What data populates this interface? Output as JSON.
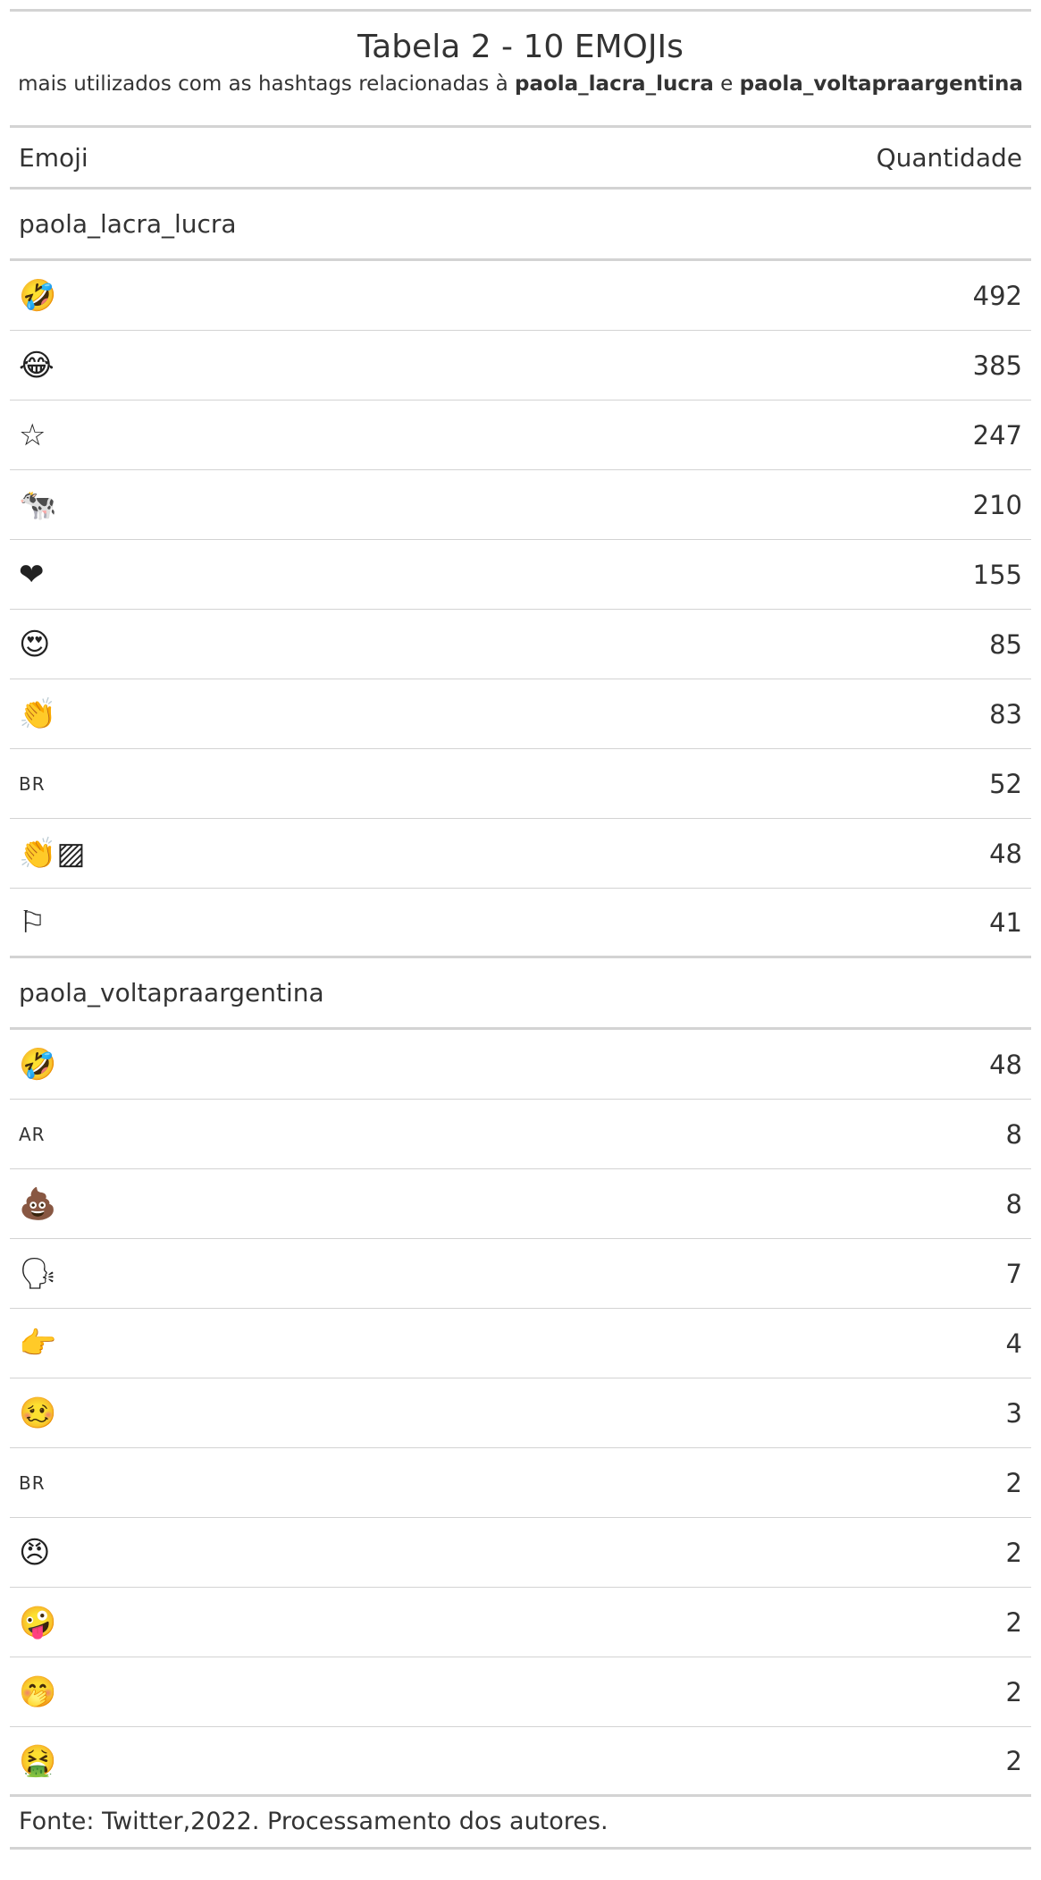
{
  "table": {
    "title": "Tabela 2 - 10 EMOJIs",
    "subtitle_prefix": "mais utilizados com as hashtags relacionadas à ",
    "subtitle_tag1": "paola_lacra_lucra",
    "subtitle_connector": " e ",
    "subtitle_tag2": "paola_voltapraargentina",
    "col_emoji": "Emoji",
    "col_qty": "Quantidade",
    "footnote": "Fonte: Twitter,2022. Processamento dos autores."
  },
  "groups": [
    {
      "name": "paola_lacra_lucra",
      "rows": [
        {
          "emoji": "🤣",
          "icon": "rofl-face-icon",
          "qty": "492"
        },
        {
          "emoji": "😂",
          "icon": "tears-of-joy-icon",
          "qty": "385"
        },
        {
          "emoji": "☆",
          "icon": "star-icon",
          "qty": "247"
        },
        {
          "emoji": "🐄",
          "icon": "cow-icon",
          "qty": "210"
        },
        {
          "emoji": "❤",
          "icon": "heart-icon",
          "qty": "155"
        },
        {
          "emoji": "😍",
          "icon": "heart-eyes-icon",
          "qty": "85"
        },
        {
          "emoji": "👏",
          "icon": "clapping-hands-icon",
          "qty": "83"
        },
        {
          "emoji": "BR",
          "icon": "flag-br-icon",
          "qty": "52"
        },
        {
          "emoji": "👏▨",
          "icon": "clapping-hands-skin-tone-icon",
          "qty": "48"
        },
        {
          "emoji": "⚐",
          "icon": "white-flag-icon",
          "qty": "41"
        }
      ]
    },
    {
      "name": "paola_voltapraargentina",
      "rows": [
        {
          "emoji": "🤣",
          "icon": "rofl-face-icon",
          "qty": "48"
        },
        {
          "emoji": "AR",
          "icon": "flag-ar-icon",
          "qty": "8"
        },
        {
          "emoji": "💩",
          "icon": "pile-of-poo-icon",
          "qty": "8"
        },
        {
          "emoji": "🗣",
          "icon": "speaking-head-icon",
          "qty": "7"
        },
        {
          "emoji": "👉",
          "icon": "pointing-right-icon",
          "qty": "4"
        },
        {
          "emoji": "🥴",
          "icon": "woozy-face-icon",
          "qty": "3"
        },
        {
          "emoji": "BR",
          "icon": "flag-br-icon",
          "qty": "2"
        },
        {
          "emoji": "😠",
          "icon": "angry-face-icon",
          "qty": "2"
        },
        {
          "emoji": "🤪",
          "icon": "zany-face-icon",
          "qty": "2"
        },
        {
          "emoji": "🤭",
          "icon": "hand-over-mouth-icon",
          "qty": "2"
        },
        {
          "emoji": "🤮",
          "icon": "vomiting-face-icon",
          "qty": "2"
        }
      ]
    }
  ]
}
